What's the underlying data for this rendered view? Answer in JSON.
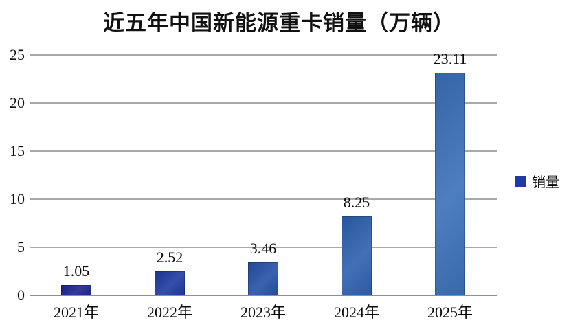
{
  "title": "近五年中国新能源重卡销量（万辆）",
  "legend": {
    "label": "销量",
    "swatch_color": "#1f3aa3"
  },
  "colors": {
    "gridline": "#a9a9a9",
    "axisline": "#8f8f8f",
    "text": "#0a0a0a"
  },
  "chart_data": {
    "type": "bar",
    "title": "近五年中国新能源重卡销量（万辆）",
    "categories": [
      "2021年",
      "2022年",
      "2023年",
      "2024年",
      "2025年"
    ],
    "series": [
      {
        "name": "销量",
        "values": [
          1.05,
          2.52,
          3.46,
          8.25,
          23.11
        ]
      }
    ],
    "value_labels": [
      "1.05",
      "2.52",
      "3.46",
      "8.25",
      "23.11"
    ],
    "xlabel": "",
    "ylabel": "",
    "ylim": [
      0,
      25
    ],
    "yticks": [
      0,
      5,
      10,
      15,
      20,
      25
    ],
    "grid": true,
    "legend_position": "right",
    "bar_colors": [
      "#1b2492",
      "#1e3aa1",
      "#2450a6",
      "#2e5fae",
      "#3a70b6"
    ]
  }
}
